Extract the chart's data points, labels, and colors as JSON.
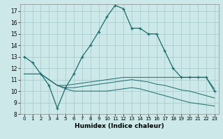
{
  "xlabel": "Humidex (Indice chaleur)",
  "bg_color": "#cce8e8",
  "grid_color": "#aacece",
  "line_color": "#1a6b6b",
  "xlim": [
    -0.5,
    23.5
  ],
  "ylim": [
    8,
    17.6
  ],
  "yticks": [
    8,
    9,
    10,
    11,
    12,
    13,
    14,
    15,
    16,
    17
  ],
  "xticks": [
    0,
    1,
    2,
    3,
    4,
    5,
    6,
    7,
    8,
    9,
    10,
    11,
    12,
    13,
    14,
    15,
    16,
    17,
    18,
    19,
    20,
    21,
    22,
    23
  ],
  "line1_x": [
    0,
    1,
    2,
    3,
    4,
    5,
    6,
    7,
    8,
    9,
    10,
    11,
    12,
    13,
    14,
    15,
    16,
    17,
    18,
    19,
    20,
    21,
    22,
    23
  ],
  "line1_y": [
    13.0,
    12.5,
    11.5,
    10.5,
    8.5,
    10.3,
    11.5,
    13.0,
    14.0,
    15.2,
    16.5,
    17.5,
    17.2,
    15.5,
    15.5,
    15.0,
    15.0,
    13.5,
    12.0,
    11.2,
    11.2,
    11.2,
    11.2,
    10.0
  ],
  "line2_x": [
    0,
    1,
    2,
    3,
    4,
    5,
    6,
    7,
    8,
    9,
    10,
    11,
    12,
    13,
    14,
    15,
    16,
    17,
    18,
    19,
    20,
    21,
    22,
    23
  ],
  "line2_y": [
    11.5,
    11.5,
    11.5,
    11.0,
    10.5,
    10.5,
    10.6,
    10.7,
    10.8,
    10.9,
    11.0,
    11.1,
    11.2,
    11.2,
    11.2,
    11.2,
    11.2,
    11.2,
    11.2,
    11.2,
    11.2,
    11.2,
    11.2,
    10.2
  ],
  "line3_x": [
    0,
    1,
    2,
    3,
    4,
    5,
    6,
    7,
    8,
    9,
    10,
    11,
    12,
    13,
    14,
    15,
    16,
    17,
    18,
    19,
    20,
    21,
    22,
    23
  ],
  "line3_y": [
    11.5,
    11.5,
    11.5,
    11.0,
    10.5,
    10.3,
    10.3,
    10.4,
    10.5,
    10.6,
    10.7,
    10.8,
    10.9,
    11.0,
    10.9,
    10.8,
    10.6,
    10.5,
    10.3,
    10.1,
    10.0,
    9.8,
    9.6,
    9.4
  ],
  "line4_x": [
    2,
    3,
    4,
    5,
    6,
    7,
    8,
    9,
    10,
    11,
    12,
    13,
    14,
    15,
    16,
    17,
    18,
    19,
    20,
    21,
    22,
    23
  ],
  "line4_y": [
    11.5,
    11.0,
    10.5,
    10.2,
    10.0,
    10.0,
    10.0,
    10.0,
    10.0,
    10.1,
    10.2,
    10.3,
    10.2,
    10.0,
    9.8,
    9.6,
    9.4,
    9.2,
    9.0,
    8.9,
    8.8,
    8.7
  ]
}
